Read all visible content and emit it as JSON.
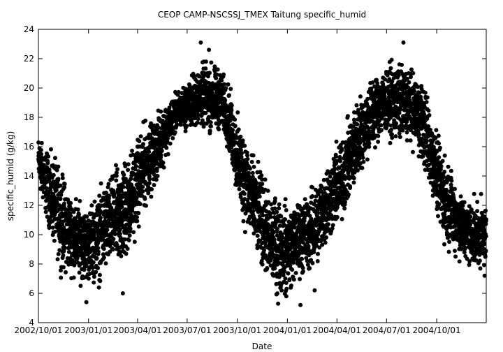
{
  "chart_data": {
    "type": "scatter",
    "title": "CEOP CAMP-NSCSSJ_TMEX Taitung  specific_humid",
    "xlabel": "Date",
    "ylabel": "specific_humid (g/kg)",
    "ylim": [
      4,
      24
    ],
    "xlim": [
      "2002-10-01",
      "2004-12-31"
    ],
    "y_ticks": [
      4,
      6,
      8,
      10,
      12,
      14,
      16,
      18,
      20,
      22,
      24
    ],
    "x_ticks": [
      "2002/10/01",
      "2003/01/01",
      "2003/04/01",
      "2003/07/01",
      "2003/10/01",
      "2004/01/01",
      "2004/04/01",
      "2004/07/01",
      "2004/10/01"
    ],
    "grid": false,
    "marker_color": "#000000",
    "series": [
      {
        "envelope_dates": [
          "2002-10-01",
          "2002-10-15",
          "2002-11-01",
          "2002-11-15",
          "2002-12-01",
          "2002-12-15",
          "2003-01-01",
          "2003-01-15",
          "2003-02-01",
          "2003-02-15",
          "2003-03-01",
          "2003-03-15",
          "2003-04-01",
          "2003-04-15",
          "2003-05-01",
          "2003-05-15",
          "2003-06-01",
          "2003-06-15",
          "2003-07-01",
          "2003-07-15",
          "2003-08-01",
          "2003-08-15",
          "2003-09-01",
          "2003-09-15",
          "2003-10-01",
          "2003-10-15",
          "2003-11-01",
          "2003-11-15",
          "2003-12-01",
          "2003-12-15",
          "2004-01-01",
          "2004-01-15",
          "2004-02-01",
          "2004-02-15",
          "2004-03-01",
          "2004-03-15",
          "2004-04-01",
          "2004-04-15",
          "2004-05-01",
          "2004-05-15",
          "2004-06-01",
          "2004-06-15",
          "2004-07-01",
          "2004-07-15",
          "2004-08-01",
          "2004-08-15",
          "2004-09-01",
          "2004-09-15",
          "2004-10-01",
          "2004-10-15",
          "2004-11-01",
          "2004-11-15",
          "2004-12-01",
          "2004-12-15",
          "2004-12-31"
        ],
        "envelope_low": [
          13.0,
          11.0,
          8.5,
          7.0,
          7.0,
          6.5,
          6.5,
          6.5,
          7.0,
          7.5,
          7.0,
          8.0,
          10.0,
          11.5,
          13.0,
          14.0,
          16.0,
          17.0,
          17.0,
          17.0,
          17.0,
          16.5,
          17.0,
          15.5,
          12.0,
          10.0,
          8.5,
          7.5,
          6.0,
          5.5,
          5.5,
          6.5,
          7.0,
          7.0,
          8.0,
          9.0,
          10.0,
          11.0,
          12.5,
          14.0,
          15.0,
          16.0,
          16.5,
          16.0,
          16.0,
          16.0,
          15.0,
          13.0,
          11.0,
          9.0,
          8.5,
          8.0,
          7.5,
          7.5,
          7.5
        ],
        "envelope_high": [
          17.0,
          16.0,
          15.5,
          14.5,
          13.0,
          12.5,
          12.0,
          13.0,
          14.0,
          14.5,
          15.5,
          16.0,
          17.0,
          18.0,
          18.0,
          19.0,
          19.5,
          20.0,
          20.5,
          21.5,
          22.0,
          22.0,
          21.5,
          20.5,
          18.5,
          17.5,
          15.5,
          14.5,
          13.0,
          13.0,
          12.5,
          12.5,
          13.0,
          13.5,
          14.5,
          15.5,
          16.5,
          17.5,
          19.0,
          20.0,
          21.0,
          21.5,
          21.5,
          22.0,
          22.0,
          21.5,
          21.0,
          20.0,
          17.0,
          16.0,
          14.5,
          13.0,
          12.5,
          12.5,
          12.5
        ],
        "points": [
          {
            "x": "2003-07-26",
            "y": 23.1
          },
          {
            "x": "2004-08-01",
            "y": 23.1
          },
          {
            "x": "2003-08-10",
            "y": 22.6
          },
          {
            "x": "2003-11-15",
            "y": 8.2
          },
          {
            "x": "2003-12-15",
            "y": 5.3
          },
          {
            "x": "2004-01-25",
            "y": 5.2
          },
          {
            "x": "2004-02-20",
            "y": 6.2
          },
          {
            "x": "2002-12-28",
            "y": 5.4
          },
          {
            "x": "2003-03-05",
            "y": 6.0
          },
          {
            "x": "2004-12-28",
            "y": 7.2
          },
          {
            "x": "2003-12-30",
            "y": 5.8
          },
          {
            "x": "2003-01-20",
            "y": 6.4
          }
        ]
      }
    ]
  }
}
